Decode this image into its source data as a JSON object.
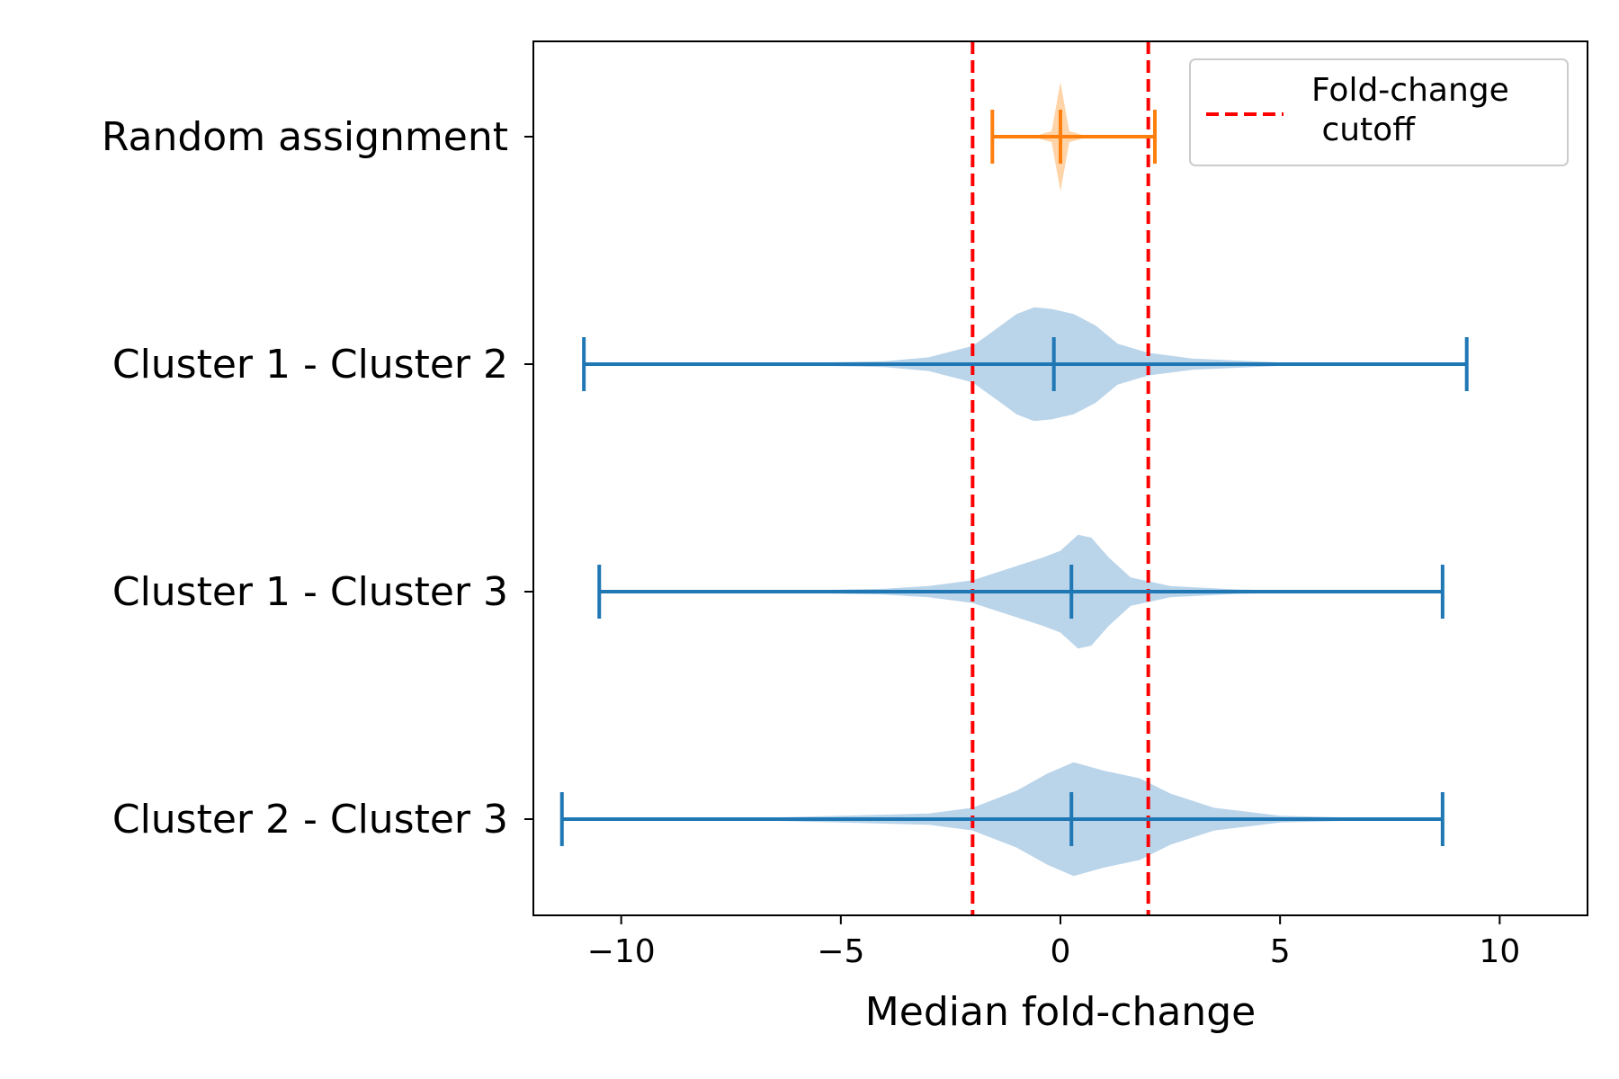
{
  "chart_data": {
    "type": "violin",
    "orientation": "horizontal",
    "xlabel": "Median fold-change",
    "ylabel": "",
    "xlim": [
      -12,
      12
    ],
    "xticks": [
      -10,
      -5,
      0,
      5,
      10
    ],
    "xtick_labels": [
      "−10",
      "−5",
      "0",
      "5",
      "10"
    ],
    "categories": [
      "Random assignment",
      "Cluster 1 - Cluster 2",
      "Cluster 1 - Cluster 3",
      "Cluster 2 - Cluster 3"
    ],
    "series": [
      {
        "category": "Random assignment",
        "color": "#ff7f0e",
        "fill": "#ffcc99",
        "min": -1.55,
        "median": 0.0,
        "max": 2.15,
        "density": [
          [
            -1.55,
            0.0
          ],
          [
            -0.6,
            0.01
          ],
          [
            -0.2,
            0.1
          ],
          [
            0.0,
            1.0
          ],
          [
            0.2,
            0.1
          ],
          [
            0.6,
            0.01
          ],
          [
            2.15,
            0.0
          ]
        ],
        "max_half_width": 0.24
      },
      {
        "category": "Cluster 1 - Cluster 2",
        "color": "#1f77b4",
        "fill": "#aecde6",
        "min": -10.85,
        "median": -0.15,
        "max": 9.25,
        "density": [
          [
            -10.85,
            0.0
          ],
          [
            -6,
            0.02
          ],
          [
            -4,
            0.05
          ],
          [
            -3,
            0.12
          ],
          [
            -2,
            0.32
          ],
          [
            -1.5,
            0.6
          ],
          [
            -1,
            0.88
          ],
          [
            -0.6,
            1.0
          ],
          [
            -0.2,
            0.97
          ],
          [
            0.3,
            0.88
          ],
          [
            0.8,
            0.68
          ],
          [
            1.3,
            0.36
          ],
          [
            2,
            0.2
          ],
          [
            3,
            0.1
          ],
          [
            5,
            0.03
          ],
          [
            7,
            0.01
          ],
          [
            9.25,
            0.0
          ]
        ],
        "max_half_width": 0.25
      },
      {
        "category": "Cluster 1 - Cluster 3",
        "color": "#1f77b4",
        "fill": "#aecde6",
        "min": -10.5,
        "median": 0.25,
        "max": 8.7,
        "density": [
          [
            -10.5,
            0.0
          ],
          [
            -6,
            0.02
          ],
          [
            -4,
            0.05
          ],
          [
            -3,
            0.1
          ],
          [
            -2,
            0.2
          ],
          [
            -1,
            0.45
          ],
          [
            -0.4,
            0.6
          ],
          [
            0,
            0.72
          ],
          [
            0.4,
            1.0
          ],
          [
            0.7,
            0.95
          ],
          [
            1.1,
            0.6
          ],
          [
            1.6,
            0.25
          ],
          [
            2.5,
            0.1
          ],
          [
            4,
            0.04
          ],
          [
            6,
            0.01
          ],
          [
            8.7,
            0.0
          ]
        ],
        "max_half_width": 0.25
      },
      {
        "category": "Cluster 2 - Cluster 3",
        "color": "#1f77b4",
        "fill": "#aecde6",
        "min": -11.35,
        "median": 0.25,
        "max": 8.7,
        "density": [
          [
            -11.35,
            0.0
          ],
          [
            -7,
            0.02
          ],
          [
            -5,
            0.06
          ],
          [
            -3,
            0.1
          ],
          [
            -2,
            0.2
          ],
          [
            -1,
            0.5
          ],
          [
            -0.3,
            0.8
          ],
          [
            0.3,
            1.0
          ],
          [
            1,
            0.85
          ],
          [
            1.8,
            0.72
          ],
          [
            2.5,
            0.45
          ],
          [
            3.5,
            0.2
          ],
          [
            5,
            0.06
          ],
          [
            7,
            0.02
          ],
          [
            8.7,
            0.0
          ]
        ],
        "max_half_width": 0.25
      }
    ],
    "reference_lines": [
      {
        "x": -2,
        "color": "#ff0000",
        "style": "dashed"
      },
      {
        "x": 2,
        "color": "#ff0000",
        "style": "dashed"
      }
    ],
    "legend": {
      "placement": "top-right",
      "entries": [
        {
          "label_lines": [
            "Fold-change",
            " cutoff"
          ],
          "color": "#ff0000",
          "style": "dashed"
        }
      ]
    },
    "grid": false
  }
}
